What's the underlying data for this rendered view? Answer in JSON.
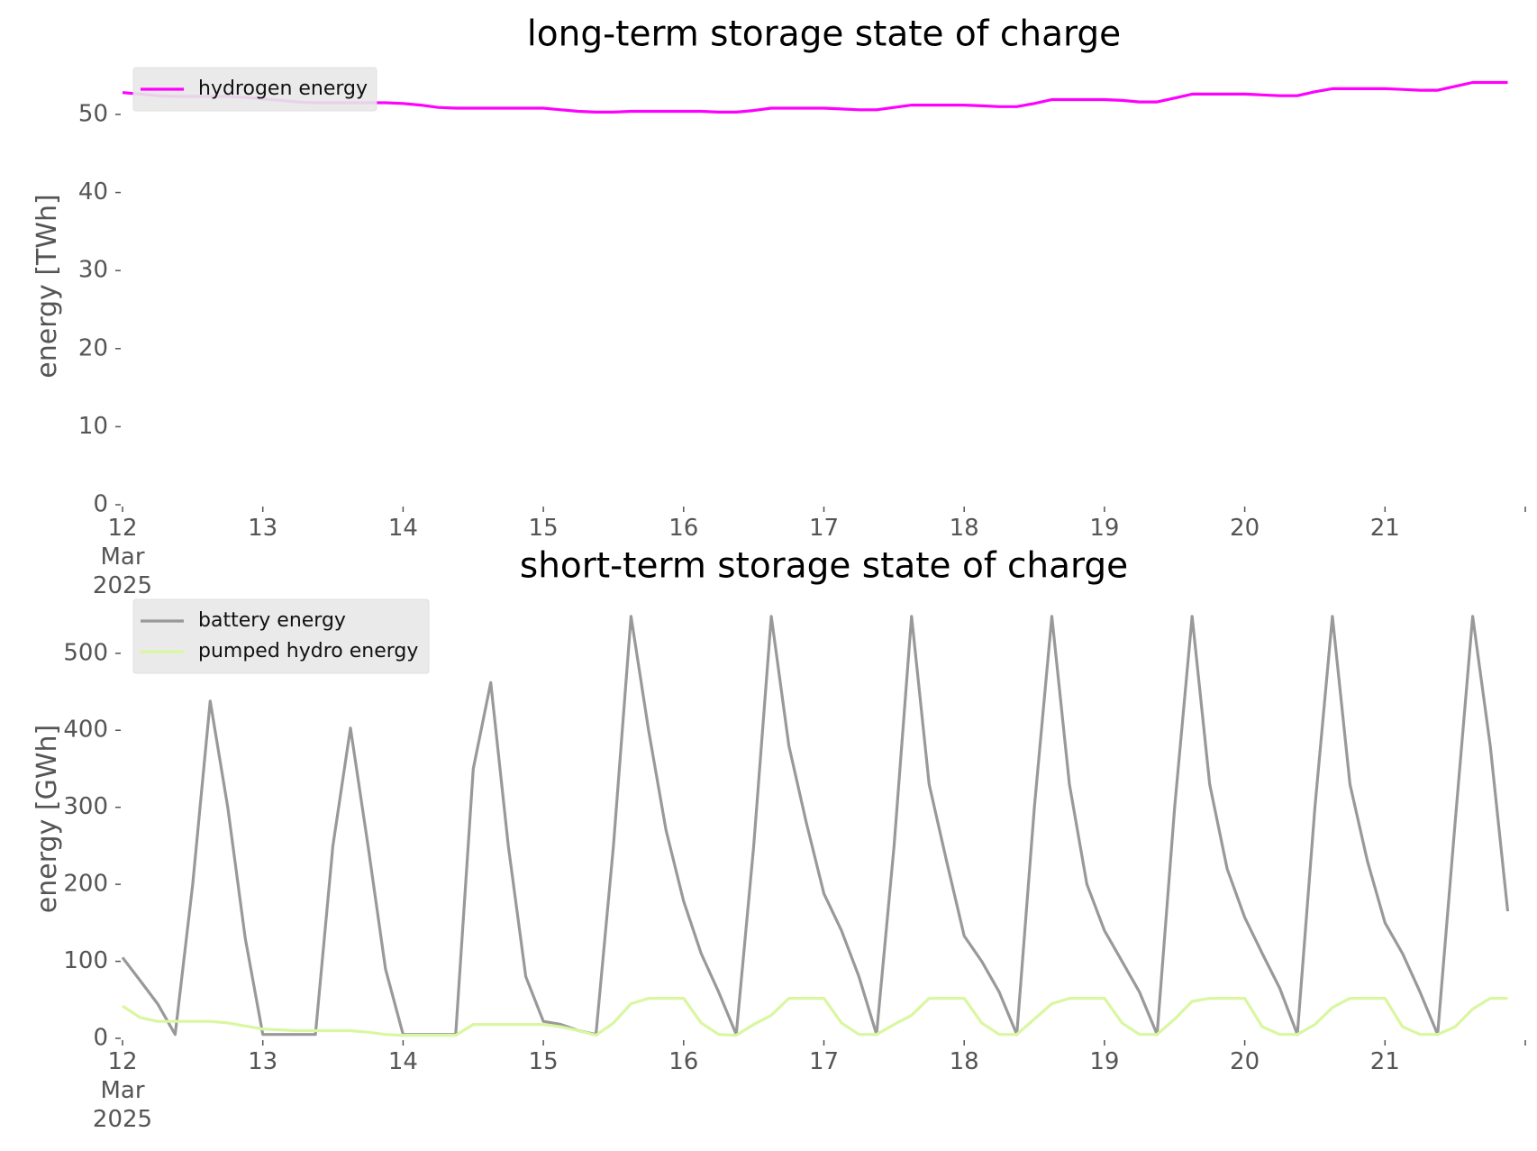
{
  "chart_data": [
    {
      "type": "line",
      "title": "long-term storage state of charge",
      "ylabel": "energy [TWh]",
      "x": [
        12,
        12.125,
        12.25,
        12.375,
        12.5,
        12.625,
        12.75,
        12.875,
        13,
        13.125,
        13.25,
        13.375,
        13.5,
        13.625,
        13.75,
        13.875,
        14,
        14.125,
        14.25,
        14.375,
        14.5,
        14.625,
        14.75,
        14.875,
        15,
        15.125,
        15.25,
        15.375,
        15.5,
        15.625,
        15.75,
        15.875,
        16,
        16.125,
        16.25,
        16.375,
        16.5,
        16.625,
        16.75,
        16.875,
        17,
        17.125,
        17.25,
        17.375,
        17.5,
        17.625,
        17.75,
        17.875,
        18,
        18.125,
        18.25,
        18.375,
        18.5,
        18.625,
        18.75,
        18.875,
        19,
        19.125,
        19.25,
        19.375,
        19.5,
        19.625,
        19.75,
        19.875,
        20,
        20.125,
        20.25,
        20.375,
        20.5,
        20.625,
        20.75,
        20.875,
        21,
        21.125,
        21.25,
        21.375,
        21.5,
        21.625,
        21.75,
        21.875
      ],
      "series": [
        {
          "name": "hydrogen energy",
          "color": "#ff00ff",
          "values": [
            52.8,
            52.6,
            52.4,
            52.3,
            52.3,
            52.3,
            52.3,
            52.2,
            52.0,
            51.8,
            51.6,
            51.5,
            51.5,
            51.5,
            51.5,
            51.5,
            51.4,
            51.2,
            50.9,
            50.8,
            50.8,
            50.8,
            50.8,
            50.8,
            50.8,
            50.6,
            50.4,
            50.3,
            50.3,
            50.4,
            50.4,
            50.4,
            50.4,
            50.4,
            50.3,
            50.3,
            50.5,
            50.8,
            50.8,
            50.8,
            50.8,
            50.7,
            50.6,
            50.6,
            50.9,
            51.2,
            51.2,
            51.2,
            51.2,
            51.1,
            51.0,
            51.0,
            51.4,
            51.9,
            51.9,
            51.9,
            51.9,
            51.8,
            51.6,
            51.6,
            52.1,
            52.6,
            52.6,
            52.6,
            52.6,
            52.5,
            52.4,
            52.4,
            52.9,
            53.3,
            53.3,
            53.3,
            53.3,
            53.2,
            53.1,
            53.1,
            53.6,
            54.1,
            54.1,
            54.1
          ]
        }
      ],
      "xlim": [
        12,
        22
      ],
      "ylim": [
        0,
        56
      ],
      "xticks": [
        {
          "value": 12,
          "label": [
            "12",
            "Mar",
            "2025"
          ]
        },
        13,
        14,
        15,
        16,
        17,
        18,
        19,
        20,
        21
      ],
      "yticks": [
        0,
        10,
        20,
        30,
        40,
        50
      ],
      "legend": "upper left"
    },
    {
      "type": "line",
      "title": "short-term storage state of charge",
      "ylabel": "energy [GWh]",
      "x": [
        12,
        12.125,
        12.25,
        12.375,
        12.5,
        12.625,
        12.75,
        12.875,
        13,
        13.125,
        13.25,
        13.375,
        13.5,
        13.625,
        13.75,
        13.875,
        14,
        14.125,
        14.25,
        14.375,
        14.5,
        14.625,
        14.75,
        14.875,
        15,
        15.125,
        15.25,
        15.375,
        15.5,
        15.625,
        15.75,
        15.875,
        16,
        16.125,
        16.25,
        16.375,
        16.5,
        16.625,
        16.75,
        16.875,
        17,
        17.125,
        17.25,
        17.375,
        17.5,
        17.625,
        17.75,
        17.875,
        18,
        18.125,
        18.25,
        18.375,
        18.5,
        18.625,
        18.75,
        18.875,
        19,
        19.125,
        19.25,
        19.375,
        19.5,
        19.625,
        19.75,
        19.875,
        20,
        20.125,
        20.25,
        20.375,
        20.5,
        20.625,
        20.75,
        20.875,
        21,
        21.125,
        21.25,
        21.375,
        21.5,
        21.625,
        21.75,
        21.875
      ],
      "series": [
        {
          "name": "battery energy",
          "color": "#999999",
          "values": [
            105,
            75,
            45,
            5,
            200,
            438,
            300,
            130,
            5,
            5,
            5,
            5,
            250,
            403,
            250,
            90,
            5,
            5,
            5,
            5,
            350,
            462,
            250,
            80,
            22,
            18,
            10,
            5,
            250,
            548,
            400,
            270,
            178,
            110,
            60,
            5,
            250,
            548,
            380,
            280,
            188,
            140,
            80,
            5,
            250,
            548,
            330,
            230,
            133,
            100,
            60,
            5,
            300,
            548,
            330,
            200,
            140,
            100,
            60,
            5,
            300,
            548,
            330,
            220,
            157,
            110,
            65,
            5,
            300,
            548,
            330,
            230,
            150,
            110,
            60,
            5,
            280,
            548,
            380,
            165
          ]
        },
        {
          "name": "pumped hydro energy",
          "color": "#d9f7a0",
          "values": [
            42,
            27,
            22,
            22,
            22,
            22,
            20,
            16,
            12,
            11,
            10,
            10,
            10,
            10,
            8,
            5,
            4,
            4,
            4,
            4,
            18,
            18,
            18,
            18,
            18,
            15,
            10,
            4,
            20,
            45,
            52,
            52,
            52,
            20,
            5,
            4,
            18,
            30,
            52,
            52,
            52,
            20,
            5,
            5,
            18,
            30,
            52,
            52,
            52,
            20,
            5,
            5,
            25,
            45,
            52,
            52,
            52,
            20,
            5,
            5,
            25,
            48,
            52,
            52,
            52,
            15,
            5,
            5,
            18,
            40,
            52,
            52,
            52,
            15,
            5,
            5,
            15,
            38,
            52,
            52
          ]
        }
      ],
      "xlim": [
        12,
        22
      ],
      "ylim": [
        0,
        570
      ],
      "xticks": [
        {
          "value": 12,
          "label": [
            "12",
            "Mar",
            "2025"
          ]
        },
        13,
        14,
        15,
        16,
        17,
        18,
        19,
        20,
        21
      ],
      "yticks": [
        0,
        100,
        200,
        300,
        400,
        500
      ],
      "legend": "upper left"
    }
  ]
}
